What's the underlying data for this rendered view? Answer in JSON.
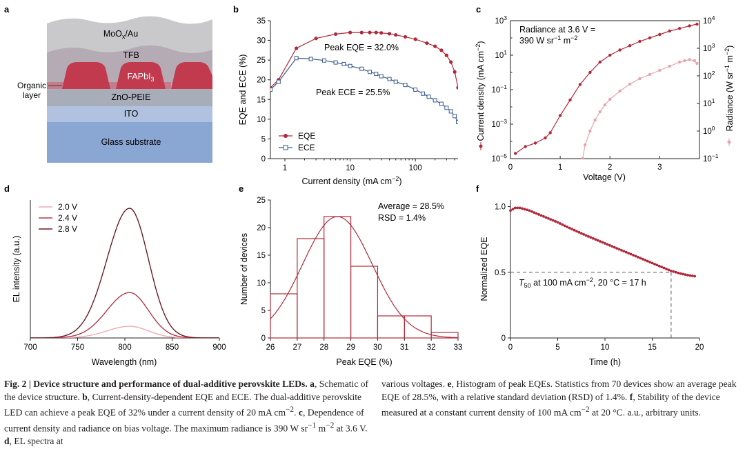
{
  "panel_a": {
    "letter": "a",
    "layers": {
      "electrode": "MoO",
      "electrode_sub": "x",
      "electrode_tail": "/Au",
      "tfb": "TFB",
      "perovskite": "FAPbI",
      "perovskite_sub": "3",
      "zno": "ZnO-PEIE",
      "ito": "ITO",
      "glass": "Glass substrate"
    },
    "organic_label_1": "Organic",
    "organic_label_2": "layer",
    "colors": {
      "electrode": "#c9c8ca",
      "tfb": "#b5abb5",
      "perovskite": "#c23a4e",
      "zno": "#a8adba",
      "ito": "#b0c2df",
      "glass": "#8aa6d3"
    }
  },
  "chart_data": [
    {
      "panel": "b",
      "type": "line",
      "xscale": "log",
      "xlim": [
        0.6,
        450
      ],
      "ylim": [
        0,
        35
      ],
      "xticks": [
        1,
        10,
        100
      ],
      "xtick_labels": [
        "1",
        "10",
        "100"
      ],
      "yticks": [
        0,
        5,
        10,
        15,
        20,
        25,
        30,
        35
      ],
      "xlabel": "Current density (mA cm",
      "xlabel_sup": "−2",
      "xlabel_tail": ")",
      "ylabel": "EQE and ECE (%)",
      "legend_position": "bottom-left",
      "annotations": [
        "Peak EQE = 32.0%",
        "Peak ECE = 25.5%"
      ],
      "series": [
        {
          "name": "EQE",
          "color": "#b2283a",
          "marker": "circle",
          "x": [
            0.6,
            0.8,
            1.5,
            3,
            6,
            10,
            15,
            20,
            25,
            30,
            40,
            50,
            70,
            100,
            150,
            200,
            250,
            300,
            350,
            400,
            450
          ],
          "y": [
            18,
            20,
            28,
            30.5,
            31.6,
            32.0,
            32.0,
            32.0,
            32.0,
            31.9,
            31.7,
            31.4,
            30.9,
            30.3,
            29.3,
            28.5,
            27.5,
            26.2,
            24.5,
            22,
            18
          ]
        },
        {
          "name": "ECE",
          "color": "#3a5a8c",
          "marker": "square",
          "x": [
            0.6,
            0.8,
            1.5,
            2.5,
            4,
            6,
            8,
            10,
            15,
            20,
            25,
            30,
            40,
            50,
            70,
            100,
            130,
            160,
            200,
            250,
            300,
            350,
            400,
            450
          ],
          "y": [
            17.5,
            19.5,
            25.5,
            25.3,
            24.9,
            24.4,
            24.0,
            23.5,
            22.8,
            22.0,
            21.5,
            20.9,
            20.2,
            19.5,
            18.7,
            17.5,
            16.5,
            15.7,
            14.8,
            13.9,
            12.9,
            12.0,
            10.8,
            9.3
          ]
        }
      ]
    },
    {
      "panel": "c",
      "type": "line",
      "xlim": [
        0,
        3.8
      ],
      "xticks": [
        0,
        1,
        2,
        3
      ],
      "ylim_left_exp": [
        -5,
        3
      ],
      "ylim_right_exp": [
        -1,
        4
      ],
      "yticks_left_labels": [
        "10",
        "10",
        "10",
        "10",
        "10"
      ],
      "yticks_left_exp": [
        "−5",
        "−3",
        "−1",
        "1",
        "3"
      ],
      "yticks_right_labels": [
        "10",
        "10",
        "10",
        "10",
        "10",
        "10"
      ],
      "yticks_right_exp": [
        "−1",
        "0",
        "1",
        "2",
        "3",
        "4"
      ],
      "xlabel": "Voltage (V)",
      "ylabel_left": "Current density (mA cm",
      "ylabel_left_sup": "−2",
      "ylabel_left_tail": ")",
      "ylabel_right": "Radiance (W sr",
      "ylabel_right_sup1": "−1",
      "ylabel_right_mid": " m",
      "ylabel_right_sup2": "−2",
      "ylabel_right_tail": ")",
      "annotation_1": "Radiance at 3.6 V =",
      "annotation_2a": "390 W sr",
      "annotation_2b": "−1",
      "annotation_2c": " m",
      "annotation_2d": "−2",
      "series": [
        {
          "name": "Current density",
          "color": "#b2283a",
          "axis": "left",
          "x": [
            0.1,
            0.3,
            0.5,
            0.7,
            0.8,
            1.0,
            1.2,
            1.4,
            1.6,
            1.8,
            2.0,
            2.2,
            2.4,
            2.6,
            2.8,
            3.0,
            3.2,
            3.4,
            3.6,
            3.75
          ],
          "log_y": [
            -4.7,
            -4.3,
            -4.1,
            -3.8,
            -3.5,
            -2.5,
            -1.6,
            -0.7,
            0.0,
            0.6,
            1.0,
            1.3,
            1.55,
            1.8,
            2.0,
            2.2,
            2.4,
            2.55,
            2.7,
            2.8
          ]
        },
        {
          "name": "Radiance",
          "color": "#e6a4ad",
          "axis": "right",
          "x": [
            1.45,
            1.5,
            1.6,
            1.7,
            1.8,
            1.9,
            2.0,
            2.2,
            2.4,
            2.6,
            2.8,
            3.0,
            3.2,
            3.4,
            3.5,
            3.6,
            3.7,
            3.75
          ],
          "log_y": [
            -1.0,
            -0.5,
            0.0,
            0.4,
            0.7,
            0.95,
            1.15,
            1.45,
            1.7,
            1.9,
            2.05,
            2.2,
            2.35,
            2.5,
            2.55,
            2.59,
            2.55,
            2.45
          ]
        }
      ]
    },
    {
      "panel": "d",
      "type": "line",
      "xlim": [
        700,
        900
      ],
      "xticks": [
        700,
        750,
        800,
        850,
        900
      ],
      "xlabel": "Wavelength (nm)",
      "ylabel": "EL intensity (a.u.)",
      "legend_position": "top-left",
      "peak_nm": 805,
      "series": [
        {
          "name": "2.0 V",
          "color": "#eeaab2",
          "peak": 0.09
        },
        {
          "name": "2.4 V",
          "color": "#b23846",
          "peak": 0.35
        },
        {
          "name": "2.8 V",
          "color": "#6b1a26",
          "peak": 1.0
        }
      ]
    },
    {
      "panel": "e",
      "type": "bar",
      "xlim": [
        26,
        33
      ],
      "ylim": [
        0,
        25
      ],
      "xticks": [
        26,
        27,
        28,
        29,
        30,
        31,
        32,
        33
      ],
      "yticks": [
        0,
        5,
        10,
        15,
        20,
        25
      ],
      "xlabel": "Peak EQE (%)",
      "ylabel": "Number of devices",
      "annotations": [
        "Average = 28.5%",
        "RSD = 1.4%"
      ],
      "bins": [
        [
          26,
          27
        ],
        [
          27,
          28
        ],
        [
          28,
          29
        ],
        [
          29,
          30
        ],
        [
          30,
          31
        ],
        [
          31,
          32
        ],
        [
          32,
          33
        ]
      ],
      "values": [
        8,
        18,
        22,
        13,
        4,
        4,
        1
      ],
      "fit": {
        "mean": 28.5,
        "sigma": 1.3,
        "peak": 22
      },
      "color": "#b2283a"
    },
    {
      "panel": "f",
      "type": "line",
      "xlim": [
        0,
        20
      ],
      "ylim": [
        0,
        1.05
      ],
      "xticks": [
        0,
        5,
        10,
        15,
        20
      ],
      "yticks": [
        0,
        0.5,
        1.0
      ],
      "ytick_labels": [
        "0",
        "0.5",
        "1.0"
      ],
      "xlabel": "Time (h)",
      "ylabel": "Normalized EQE",
      "annotation_a": "T",
      "annotation_b": "50",
      "annotation_c": " at 100 mA cm",
      "annotation_d": "−2",
      "annotation_e": ", 20 °C = 17 h",
      "t50_h": 17,
      "series": [
        {
          "name": "Normalized EQE",
          "color": "#b2283a",
          "x": [
            0,
            0.5,
            1,
            2,
            3,
            4,
            5,
            6,
            8,
            10,
            12,
            14,
            16,
            17,
            18,
            19,
            19.5
          ],
          "y": [
            0.97,
            0.99,
            0.99,
            0.97,
            0.94,
            0.91,
            0.88,
            0.845,
            0.78,
            0.72,
            0.66,
            0.6,
            0.54,
            0.51,
            0.49,
            0.475,
            0.47
          ]
        }
      ]
    }
  ],
  "panel_letters": {
    "b": "b",
    "c": "c",
    "d": "d",
    "e": "e",
    "f": "f"
  },
  "caption": {
    "left": {
      "title": "Fig. 2 | Device structure and performance of dual-additive perovskite LEDs.",
      "a_label": "a",
      "a_text": ", Schematic of the device structure. ",
      "b_label": "b",
      "b_text": ", Current-density-dependent EQE and ECE. The dual-additive perovskite LED can achieve a peak EQE of 32% under a current density of 20 mA cm",
      "b_sup": "−2",
      "b_tail": ". ",
      "c_label": "c",
      "c_text": ", Dependence of current density and radiance on bias voltage. The maximum radiance is 390 W sr",
      "c_sup1": "−1",
      "c_mid": " m",
      "c_sup2": "−2",
      "c_tail": " at 3.6 V. ",
      "d_label": "d",
      "d_text": ", EL spectra at"
    },
    "right": {
      "d_cont": "various voltages. ",
      "e_label": "e",
      "e_text": ", Histogram of peak EQEs. Statistics from 70 devices show an average peak EQE of 28.5%, with a relative standard deviation (RSD) of 1.4%. ",
      "f_label": "f",
      "f_text": ", Stability of the device measured at a constant current density of 100 mA cm",
      "f_sup": "−2",
      "f_tail": " at 20 °C. a.u., arbitrary units."
    }
  }
}
